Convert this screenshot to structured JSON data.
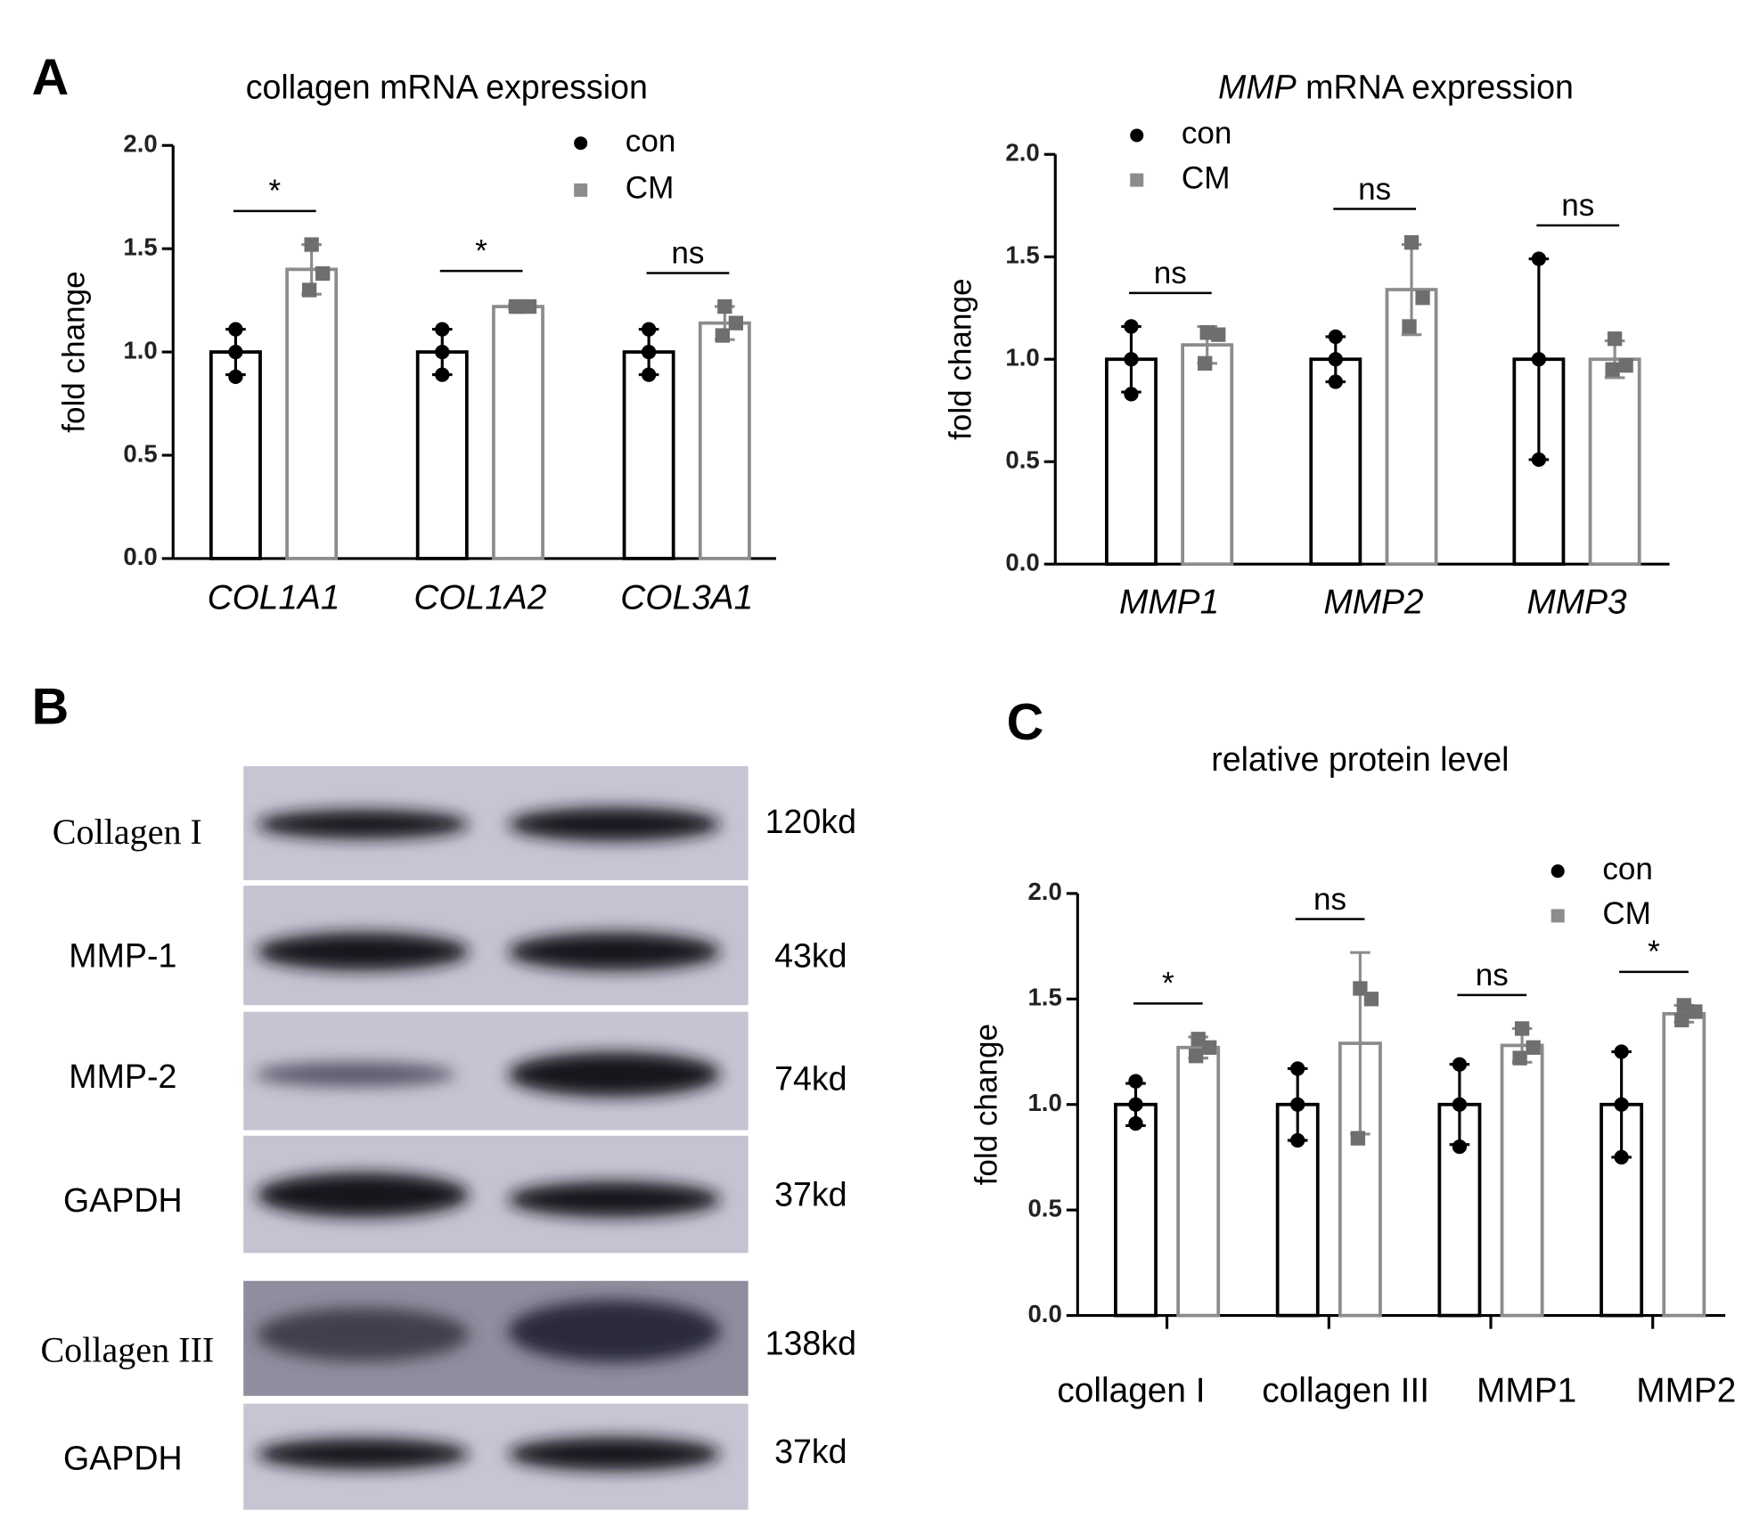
{
  "panels": [
    "A",
    "B",
    "C"
  ],
  "chart_data": [
    {
      "type": "bar",
      "title": "collagen mRNA expression",
      "y_label": "fold change",
      "categories": [
        "COL1A1",
        "COL1A2",
        "COL3A1"
      ],
      "series": [
        {
          "name": "con",
          "color": "#000000",
          "values": [
            1.0,
            1.0,
            1.0
          ],
          "errors": [
            0.11,
            0.11,
            0.11
          ],
          "points": [
            [
              1.11,
              1.0,
              0.88
            ],
            [
              1.11,
              1.0,
              0.89
            ],
            [
              1.11,
              1.0,
              0.89
            ]
          ]
        },
        {
          "name": "CM",
          "color": "#8c8c8c",
          "values": [
            1.4,
            1.22,
            1.14
          ],
          "errors": [
            0.12,
            0.01,
            0.08
          ],
          "points": [
            [
              1.52,
              1.38,
              1.3
            ],
            [
              1.22,
              1.22,
              1.22
            ],
            [
              1.22,
              1.14,
              1.08
            ]
          ]
        }
      ],
      "significance": [
        "*",
        "*",
        "ns"
      ],
      "ylim": [
        0,
        2
      ],
      "yticks": [
        {
          "value": 0,
          "label": "0.0"
        },
        {
          "value": 0.5,
          "label": "0.5"
        },
        {
          "value": 1,
          "label": "1.0"
        },
        {
          "value": 1.5,
          "label": "1.5"
        },
        {
          "value": 2,
          "label": "2.0"
        }
      ]
    },
    {
      "type": "bar",
      "title": "MMP mRNA expression",
      "y_label": "fold change",
      "categories": [
        "MMP1",
        "MMP2",
        "MMP3"
      ],
      "series": [
        {
          "name": "con",
          "color": "#000000",
          "values": [
            1.0,
            1.0,
            1.0
          ],
          "errors": [
            0.16,
            0.11,
            0.49
          ],
          "points": [
            [
              1.16,
              1.0,
              0.83
            ],
            [
              1.11,
              1.0,
              0.89
            ],
            [
              1.49,
              1.0,
              0.51
            ]
          ]
        },
        {
          "name": "CM",
          "color": "#8c8c8c",
          "values": [
            1.07,
            1.34,
            1.0
          ],
          "errors": [
            0.09,
            0.22,
            0.09
          ],
          "points": [
            [
              1.13,
              1.12,
              0.98
            ],
            [
              1.57,
              1.3,
              1.16
            ],
            [
              1.1,
              0.97,
              0.95
            ]
          ]
        }
      ],
      "significance": [
        "ns",
        "ns",
        "ns"
      ],
      "ylim": [
        0,
        2
      ],
      "yticks": [
        {
          "value": 0,
          "label": "0.0"
        },
        {
          "value": 0.5,
          "label": "0.5"
        },
        {
          "value": 1,
          "label": "1.0"
        },
        {
          "value": 1.5,
          "label": "1.5"
        },
        {
          "value": 2,
          "label": "2.0"
        }
      ]
    },
    {
      "type": "bar",
      "title": "relative protein level",
      "y_label": "fold change",
      "categories": [
        "collagen I",
        "collagen III",
        "MMP1",
        "MMP2"
      ],
      "series": [
        {
          "name": "con",
          "color": "#000000",
          "values": [
            1.0,
            1.0,
            1.0,
            1.0
          ],
          "errors": [
            0.1,
            0.17,
            0.19,
            0.25
          ],
          "points": [
            [
              1.11,
              1.0,
              0.91
            ],
            [
              1.17,
              1.0,
              0.83
            ],
            [
              1.19,
              1.0,
              0.8
            ],
            [
              1.25,
              1.0,
              0.75
            ]
          ]
        },
        {
          "name": "CM",
          "color": "#8c8c8c",
          "values": [
            1.27,
            1.29,
            1.28,
            1.43
          ],
          "errors": [
            0.05,
            0.43,
            0.08,
            0.04
          ],
          "points": [
            [
              1.31,
              1.27,
              1.23
            ],
            [
              1.55,
              1.5,
              0.84
            ],
            [
              1.36,
              1.27,
              1.22
            ],
            [
              1.47,
              1.44,
              1.4
            ]
          ]
        }
      ],
      "significance": [
        "*",
        "ns",
        "ns",
        "*"
      ],
      "ylim": [
        0,
        2
      ],
      "yticks": [
        {
          "value": 0,
          "label": "0.0"
        },
        {
          "value": 0.5,
          "label": "0.5"
        },
        {
          "value": 1,
          "label": "1.0"
        },
        {
          "value": 1.5,
          "label": "1.5"
        },
        {
          "value": 2,
          "label": "2.0"
        }
      ]
    }
  ],
  "blot": {
    "rows": [
      {
        "protein": "Collagen I",
        "size": "120kd"
      },
      {
        "protein": "MMP-1",
        "size": "43kd"
      },
      {
        "protein": "MMP-2",
        "size": "74kd"
      },
      {
        "protein": "GAPDH",
        "size": "37kd"
      },
      {
        "protein": "Collagen III",
        "size": "138kd"
      },
      {
        "protein": "GAPDH",
        "size": "37kd"
      }
    ]
  }
}
